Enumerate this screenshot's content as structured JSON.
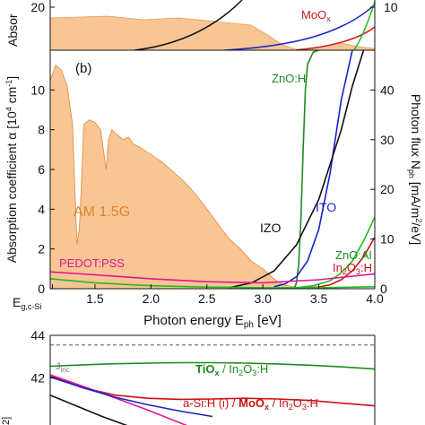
{
  "chart_data": [
    {
      "panel": "top (partial)",
      "type": "line",
      "ylabel_left": "Absor",
      "yticks_left": [
        "20"
      ],
      "yticks_right": [
        "10"
      ],
      "series": [
        {
          "name": "MoOx",
          "color": "#d01818"
        },
        {
          "color": "#111111"
        },
        {
          "color": "#1a22c8"
        }
      ],
      "annotations": [
        {
          "text": "MoO",
          "sub": "x",
          "color": "#d01818"
        }
      ]
    },
    {
      "panel": "(b)",
      "type": "line",
      "panel_label": "(b)",
      "xlabel": "Photon energy E",
      "xlabel_sub": "ph",
      "xlabel_unit": " [eV]",
      "ylabel": "Absorption coefficient α [10",
      "ylabel_sup": "4",
      "ylabel_unit": " cm",
      "ylabel_sup2": "-1",
      "ylabel_end": "]",
      "y2label": "Photon flux N",
      "y2label_sub": "ph",
      "y2label_unit": " [mA/m",
      "y2label_sup": "2",
      "y2label_end": "/eV]",
      "xlim": [
        1.1,
        4.0
      ],
      "ylim": [
        0,
        12
      ],
      "y2lim": [
        0,
        48
      ],
      "x_ticks": [
        1.5,
        2.0,
        2.5,
        3.0,
        3.5,
        4.0
      ],
      "x_tick_labels": [
        "1.5",
        "2.0",
        "2.5",
        "3.0",
        "3.5",
        "4.0"
      ],
      "y_ticks": [
        0,
        2,
        4,
        6,
        8,
        10
      ],
      "y_tick_labels": [
        "0",
        "2",
        "4",
        "6",
        "8",
        "10"
      ],
      "y2_ticks": [
        0,
        10,
        20,
        30,
        40
      ],
      "y2_tick_labels": [
        "0",
        "10",
        "20",
        "30",
        "40"
      ],
      "x_marker": {
        "text": "E",
        "sub": "g,c-Si",
        "x": 1.12
      },
      "am15g": {
        "name": "AM 1.5G",
        "color": "#f5a660",
        "x": [
          1.1,
          1.15,
          1.2,
          1.25,
          1.3,
          1.32,
          1.34,
          1.36,
          1.38,
          1.4,
          1.45,
          1.5,
          1.55,
          1.6,
          1.62,
          1.65,
          1.7,
          1.75,
          1.8,
          1.85,
          1.9,
          2.0,
          2.1,
          2.2,
          2.3,
          2.4,
          2.5,
          2.6,
          2.7,
          2.8,
          2.9,
          3.0,
          3.05,
          3.1,
          3.15,
          3.2,
          3.3,
          3.4,
          3.5,
          3.6,
          3.7,
          3.8,
          3.9,
          4.0
        ],
        "y": [
          42,
          45,
          44,
          41,
          33,
          20,
          9,
          12,
          22,
          33,
          34,
          33.5,
          32,
          24,
          30,
          32,
          31,
          30,
          30.5,
          29,
          28.5,
          27,
          25.5,
          23.5,
          21.5,
          19,
          16,
          13,
          10,
          8,
          5.5,
          4,
          3,
          2,
          1.2,
          0.7,
          0.3,
          0.1,
          0.05,
          0.02,
          0.01,
          0,
          0,
          0
        ]
      },
      "series": [
        {
          "name": "ZnO:H",
          "color": "#1f8a1f",
          "x": [
            3.28,
            3.3,
            3.32,
            3.34,
            3.36,
            3.38,
            3.4,
            3.45,
            3.5
          ],
          "y": [
            0,
            0.3,
            1.2,
            3.5,
            7,
            10,
            11.3,
            11.9,
            12
          ]
        },
        {
          "name": "ITO",
          "color": "#1a22c8",
          "x": [
            3.1,
            3.2,
            3.3,
            3.4,
            3.5,
            3.6,
            3.7,
            3.8
          ],
          "y": [
            0.1,
            0.25,
            0.6,
            1.4,
            3,
            5.8,
            9.5,
            12
          ]
        },
        {
          "name": "IZO",
          "color": "#111111",
          "x": [
            2.7,
            2.9,
            3.1,
            3.3,
            3.5,
            3.7,
            3.8,
            3.9
          ],
          "y": [
            0.05,
            0.3,
            0.9,
            2.2,
            4.5,
            8,
            10.2,
            12
          ]
        },
        {
          "name": "ZnO:Al",
          "color": "#22bb22",
          "x": [
            3.3,
            3.45,
            3.6,
            3.7,
            3.8,
            3.9,
            4.0
          ],
          "y": [
            0.05,
            0.15,
            0.4,
            0.8,
            1.4,
            2.4,
            3.6
          ]
        },
        {
          "name": "In2O3:H",
          "color": "#cc1111",
          "x": [
            3.3,
            3.5,
            3.6,
            3.7,
            3.8,
            3.9,
            4.0
          ],
          "y": [
            0.02,
            0.08,
            0.2,
            0.45,
            0.9,
            1.6,
            2.6
          ]
        },
        {
          "name": "PEDOT:PSS",
          "color": "#e01890",
          "x": [
            1.1,
            1.5,
            2.0,
            2.5,
            3.0,
            3.5,
            4.0
          ],
          "y": [
            0.85,
            0.7,
            0.5,
            0.35,
            0.3,
            0.45,
            0.75
          ]
        },
        {
          "color": "#22bb22",
          "x": [
            1.1,
            1.5,
            2.0,
            2.5,
            3.0,
            3.5,
            4.0
          ],
          "y": [
            0.5,
            0.3,
            0.15,
            0.08,
            0.05,
            0.05,
            0.1
          ]
        }
      ],
      "labels": [
        {
          "text": "(b)",
          "color": "#111111"
        },
        {
          "text": "ZnO:H",
          "color": "#1f8a1f"
        },
        {
          "text": "ITO",
          "color": "#1a22c8"
        },
        {
          "text": "IZO",
          "color": "#111111"
        },
        {
          "text": "AM 1.5G",
          "color": "#e0832c"
        },
        {
          "text": "PEDOT:PSS",
          "color": "#e01890"
        },
        {
          "text": "ZnO:Al",
          "color": "#1f8a1f"
        },
        {
          "text": "In",
          "sub1": "2",
          "mid": "O",
          "sub2": "3",
          "end": ":H",
          "color": "#cc1111"
        }
      ]
    },
    {
      "panel": "bottom (partial)",
      "type": "line",
      "ylim": [
        39.8,
        44
      ],
      "y_ticks": [
        42,
        44
      ],
      "y_tick_labels": [
        "42",
        "44"
      ],
      "reference": {
        "name": "J",
        "sub": "inc",
        "value": 43.55,
        "color": "#888888"
      },
      "series": [
        {
          "name": "TiOx / In2O3:H",
          "color": "#1f8a1f",
          "x": [
            0,
            0.1,
            0.2,
            0.3,
            0.4,
            0.5,
            0.6,
            0.7,
            0.8,
            0.9,
            1.0
          ],
          "y": [
            42.55,
            42.62,
            42.67,
            42.7,
            42.72,
            42.72,
            42.7,
            42.66,
            42.6,
            42.52,
            42.42
          ]
        },
        {
          "name": "a-Si:H (i) / MoOx / In2O3:H",
          "color": "#cc1111",
          "x": [
            0,
            0.1,
            0.2,
            0.3,
            0.4,
            0.5,
            0.6,
            0.7,
            0.8,
            0.9,
            1.0
          ],
          "y": [
            42.1,
            41.55,
            41.2,
            41.05,
            41.0,
            41.02,
            41.05,
            41.02,
            40.95,
            40.82,
            40.7
          ]
        },
        {
          "color": "#e01890",
          "x": [
            0,
            0.15,
            0.3,
            0.45
          ],
          "y": [
            42.15,
            41.35,
            40.5,
            39.6
          ]
        },
        {
          "color": "#1a22c8",
          "x": [
            0,
            0.1,
            0.2,
            0.3,
            0.4,
            0.5
          ],
          "y": [
            42.05,
            41.55,
            41.1,
            40.75,
            40.45,
            40.2
          ]
        },
        {
          "color": "#111111",
          "x": [
            0,
            0.08,
            0.16,
            0.25
          ],
          "y": [
            41.2,
            40.7,
            40.2,
            39.7
          ]
        }
      ],
      "labels": [
        {
          "parts": [
            {
              "t": "TiO",
              "b": true
            },
            {
              "t": "x",
              "sub": true,
              "b": true
            },
            {
              "t": " / In"
            },
            {
              "t": "2",
              "sub": true
            },
            {
              "t": "O"
            },
            {
              "t": "3",
              "sub": true
            },
            {
              "t": ":H"
            }
          ],
          "color": "#1f8a1f"
        },
        {
          "parts": [
            {
              "t": "a-Si:H (i) / "
            },
            {
              "t": "MoO",
              "b": true
            },
            {
              "t": "x",
              "sub": true,
              "b": true
            },
            {
              "t": " / In"
            },
            {
              "t": "2",
              "sub": true
            },
            {
              "t": "O"
            },
            {
              "t": "3",
              "sub": true
            },
            {
              "t": ":H"
            }
          ],
          "color": "#cc1111"
        }
      ],
      "ylabel_fragment": "2]"
    }
  ]
}
